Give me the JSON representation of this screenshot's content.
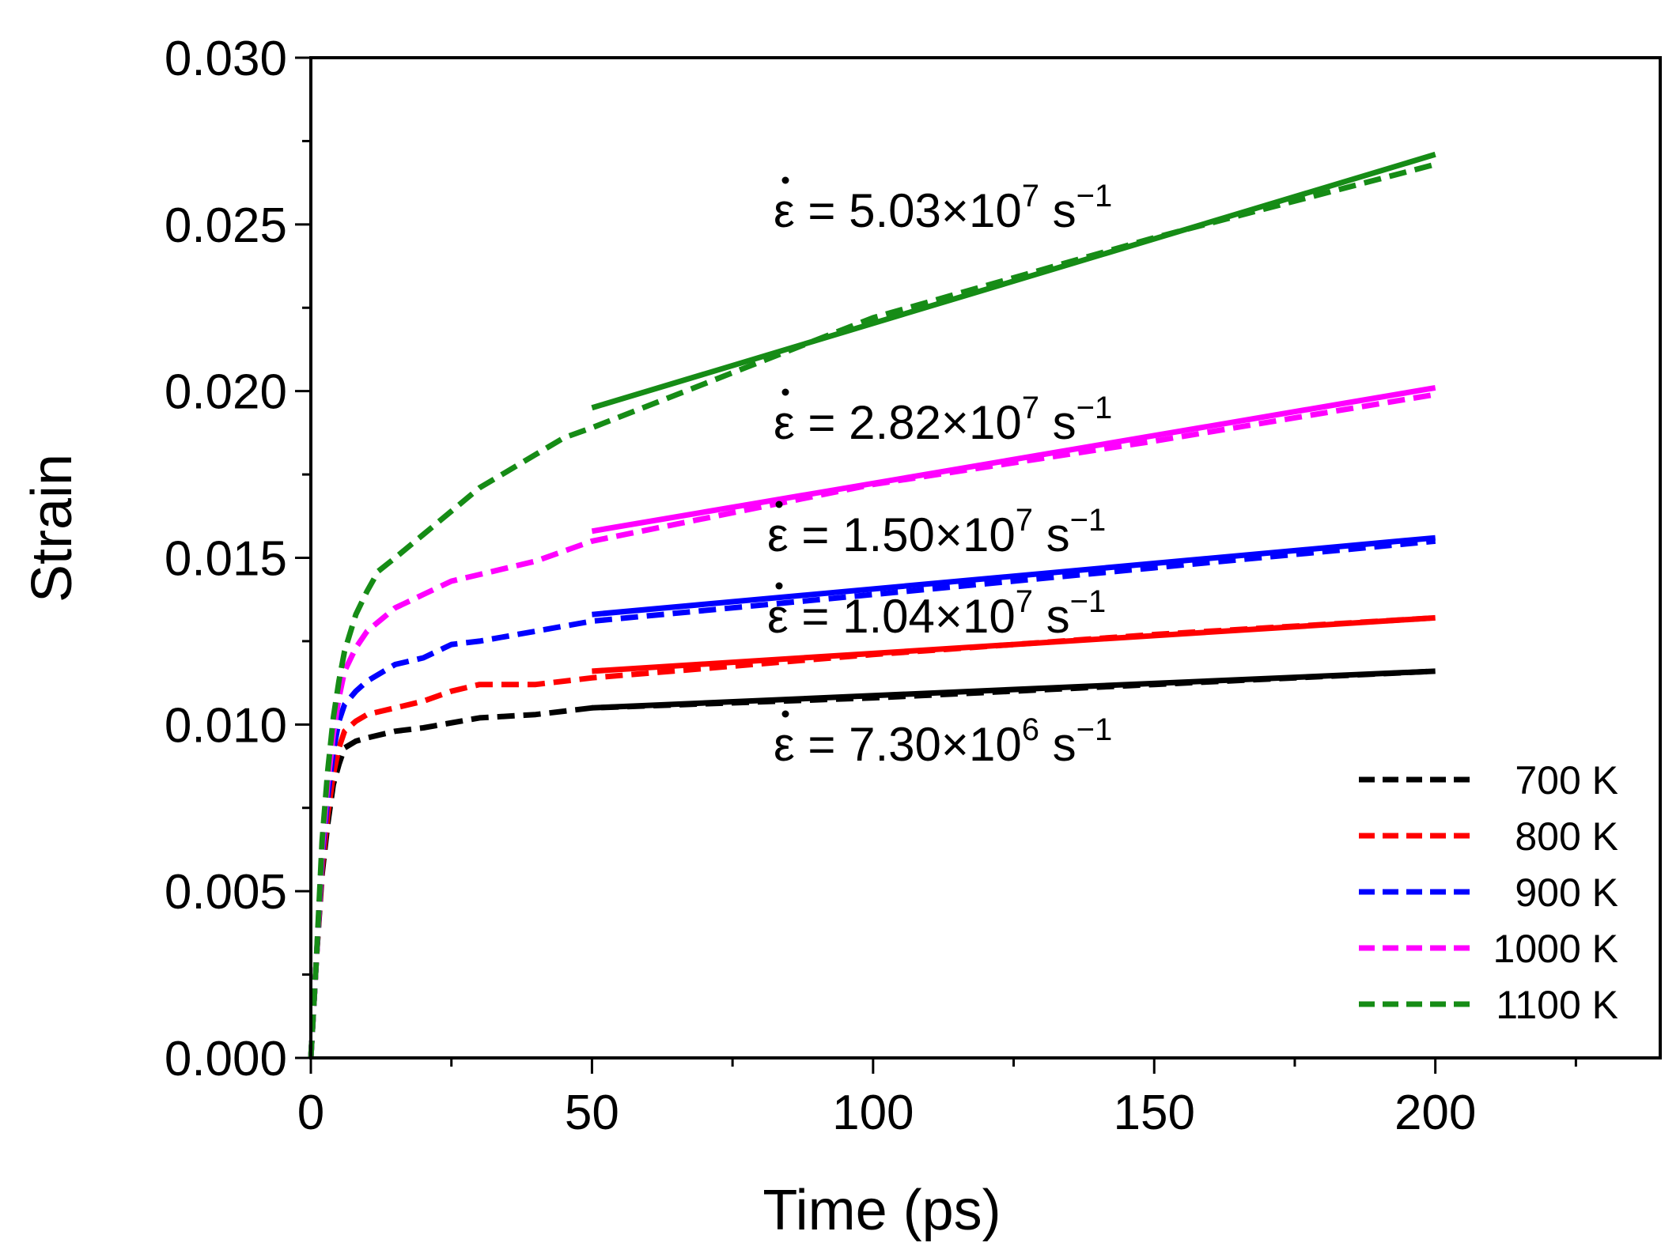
{
  "chart_data": {
    "type": "line",
    "title": "",
    "xlabel": "Time (ps)",
    "ylabel": "Strain",
    "xlim": [
      0,
      240
    ],
    "ylim": [
      0.0,
      0.03
    ],
    "xticks": [
      0,
      50,
      100,
      150,
      200
    ],
    "xtick_labels": [
      "0",
      "50",
      "100",
      "150",
      "200"
    ],
    "yticks": [
      0.0,
      0.005,
      0.01,
      0.015,
      0.02,
      0.025,
      0.03
    ],
    "ytick_labels": [
      "0.000",
      "0.005",
      "0.010",
      "0.015",
      "0.020",
      "0.025",
      "0.030"
    ],
    "legend_position": "bottom-right",
    "series": [
      {
        "name": "700 K",
        "color": "#000000",
        "x": [
          0,
          1,
          2,
          3,
          4,
          5,
          6,
          8,
          10,
          15,
          20,
          30,
          40,
          50,
          100,
          150,
          200
        ],
        "y": [
          0.0,
          0.003,
          0.0055,
          0.007,
          0.0082,
          0.0088,
          0.0093,
          0.0095,
          0.0096,
          0.0098,
          0.0099,
          0.0102,
          0.0103,
          0.0105,
          0.0108,
          0.0112,
          0.0116
        ],
        "fit": {
          "x": [
            50,
            200
          ],
          "y": [
            0.0105,
            0.0116
          ],
          "rate_mantissa": "7.30",
          "rate_exponent": "6"
        }
      },
      {
        "name": "800 K",
        "color": "#ff0000",
        "x": [
          0,
          1,
          2,
          3,
          4,
          5,
          6,
          8,
          10,
          15,
          20,
          25,
          30,
          40,
          50,
          100,
          150,
          200
        ],
        "y": [
          0.0,
          0.003,
          0.0057,
          0.0073,
          0.0085,
          0.0093,
          0.0098,
          0.0101,
          0.0103,
          0.0105,
          0.0107,
          0.011,
          0.0112,
          0.0112,
          0.0114,
          0.0121,
          0.0127,
          0.0132
        ],
        "fit": {
          "x": [
            50,
            200
          ],
          "y": [
            0.0116,
            0.0132
          ],
          "rate_mantissa": "1.04",
          "rate_exponent": "7"
        }
      },
      {
        "name": "900 K",
        "color": "#0000ff",
        "x": [
          0,
          1,
          2,
          3,
          4,
          5,
          6,
          8,
          10,
          15,
          20,
          25,
          30,
          40,
          50,
          100,
          150,
          200
        ],
        "y": [
          0.0,
          0.003,
          0.006,
          0.0078,
          0.0092,
          0.0101,
          0.0106,
          0.011,
          0.0113,
          0.0118,
          0.012,
          0.0124,
          0.0125,
          0.0128,
          0.0131,
          0.0139,
          0.0147,
          0.0155
        ],
        "fit": {
          "x": [
            50,
            200
          ],
          "y": [
            0.0133,
            0.0156
          ],
          "rate_mantissa": "1.50",
          "rate_exponent": "7"
        }
      },
      {
        "name": "1000 K",
        "color": "#ff00ff",
        "x": [
          0,
          1,
          2,
          3,
          4,
          5,
          6,
          8,
          10,
          15,
          20,
          25,
          30,
          40,
          50,
          100,
          150,
          200
        ],
        "y": [
          0.0,
          0.003,
          0.0062,
          0.0082,
          0.0097,
          0.0108,
          0.0116,
          0.0123,
          0.0128,
          0.0135,
          0.0139,
          0.0143,
          0.0145,
          0.0149,
          0.0155,
          0.0172,
          0.0185,
          0.0199
        ],
        "fit": {
          "x": [
            50,
            200
          ],
          "y": [
            0.0158,
            0.0201
          ],
          "rate_mantissa": "2.82",
          "rate_exponent": "7"
        }
      },
      {
        "name": "1100 K",
        "color": "#168c16",
        "x": [
          0,
          1,
          2,
          3,
          4,
          5,
          6,
          8,
          10,
          12,
          15,
          20,
          25,
          30,
          35,
          40,
          45,
          50,
          100,
          150,
          200
        ],
        "y": [
          0.0,
          0.003,
          0.0065,
          0.0086,
          0.0102,
          0.0113,
          0.0122,
          0.0133,
          0.014,
          0.0146,
          0.015,
          0.0157,
          0.0164,
          0.0171,
          0.0176,
          0.0181,
          0.0186,
          0.0189,
          0.0222,
          0.0246,
          0.0268
        ],
        "fit": {
          "x": [
            50,
            200
          ],
          "y": [
            0.0195,
            0.0271
          ],
          "rate_mantissa": "5.03",
          "rate_exponent": "7"
        }
      }
    ]
  },
  "annotations": [
    {
      "series": "1100 K",
      "symbol": "ε",
      "equals": "=",
      "mantissa": "5.03",
      "times": "×10",
      "exponent": "7",
      "unit": "s",
      "unit_exp": "−1"
    },
    {
      "series": "1000 K",
      "symbol": "ε",
      "equals": "=",
      "mantissa": "2.82",
      "times": "×10",
      "exponent": "7",
      "unit": "s",
      "unit_exp": "−1"
    },
    {
      "series": "900 K",
      "symbol": "ε",
      "equals": "=",
      "mantissa": "1.50",
      "times": "×10",
      "exponent": "7",
      "unit": "s",
      "unit_exp": "−1"
    },
    {
      "series": "800 K",
      "symbol": "ε",
      "equals": "=",
      "mantissa": "1.04",
      "times": "×10",
      "exponent": "7",
      "unit": "s",
      "unit_exp": "−1"
    },
    {
      "series": "700 K",
      "symbol": "ε",
      "equals": "=",
      "mantissa": "7.30",
      "times": "×10",
      "exponent": "6",
      "unit": "s",
      "unit_exp": "−1"
    }
  ]
}
